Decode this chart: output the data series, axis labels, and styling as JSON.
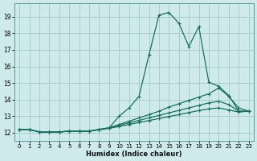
{
  "xlabel": "Humidex (Indice chaleur)",
  "xlim": [
    -0.5,
    23.5
  ],
  "ylim": [
    11.5,
    19.8
  ],
  "yticks": [
    12,
    13,
    14,
    15,
    16,
    17,
    18,
    19
  ],
  "xticks": [
    0,
    1,
    2,
    3,
    4,
    5,
    6,
    7,
    8,
    9,
    10,
    11,
    12,
    13,
    14,
    15,
    16,
    17,
    18,
    19,
    20,
    21,
    22,
    23
  ],
  "bg_color": "#ceeaea",
  "grid_color": "#a8cccc",
  "line_color": "#1a7060",
  "lines": [
    {
      "x": [
        0,
        1,
        2,
        3,
        4,
        5,
        6,
        7,
        8,
        9,
        10,
        11,
        12,
        13,
        14,
        15,
        16,
        17,
        18,
        19,
        20,
        21,
        22,
        23
      ],
      "y": [
        12.2,
        12.2,
        12.05,
        12.05,
        12.05,
        12.1,
        12.1,
        12.1,
        12.2,
        12.3,
        13.0,
        13.5,
        14.2,
        16.7,
        19.1,
        19.25,
        18.6,
        17.2,
        18.4,
        15.05,
        14.8,
        14.25,
        13.3,
        13.3
      ]
    },
    {
      "x": [
        0,
        1,
        2,
        3,
        4,
        5,
        6,
        7,
        8,
        9,
        10,
        11,
        12,
        13,
        14,
        15,
        16,
        17,
        18,
        19,
        20,
        21,
        22,
        23
      ],
      "y": [
        12.2,
        12.2,
        12.05,
        12.05,
        12.05,
        12.1,
        12.1,
        12.1,
        12.2,
        12.3,
        12.5,
        12.7,
        12.9,
        13.1,
        13.3,
        13.55,
        13.75,
        13.95,
        14.15,
        14.35,
        14.7,
        14.2,
        13.5,
        13.3
      ]
    },
    {
      "x": [
        0,
        1,
        2,
        3,
        4,
        5,
        6,
        7,
        8,
        9,
        10,
        11,
        12,
        13,
        14,
        15,
        16,
        17,
        18,
        19,
        20,
        21,
        22,
        23
      ],
      "y": [
        12.2,
        12.2,
        12.05,
        12.05,
        12.05,
        12.1,
        12.1,
        12.1,
        12.2,
        12.3,
        12.45,
        12.6,
        12.75,
        12.9,
        13.05,
        13.2,
        13.35,
        13.5,
        13.65,
        13.8,
        13.9,
        13.7,
        13.3,
        13.3
      ]
    },
    {
      "x": [
        0,
        1,
        2,
        3,
        4,
        5,
        6,
        7,
        8,
        9,
        10,
        11,
        12,
        13,
        14,
        15,
        16,
        17,
        18,
        19,
        20,
        21,
        22,
        23
      ],
      "y": [
        12.2,
        12.2,
        12.05,
        12.05,
        12.05,
        12.1,
        12.1,
        12.1,
        12.18,
        12.27,
        12.38,
        12.5,
        12.62,
        12.74,
        12.86,
        12.98,
        13.1,
        13.22,
        13.34,
        13.44,
        13.5,
        13.38,
        13.25,
        13.3
      ]
    }
  ]
}
